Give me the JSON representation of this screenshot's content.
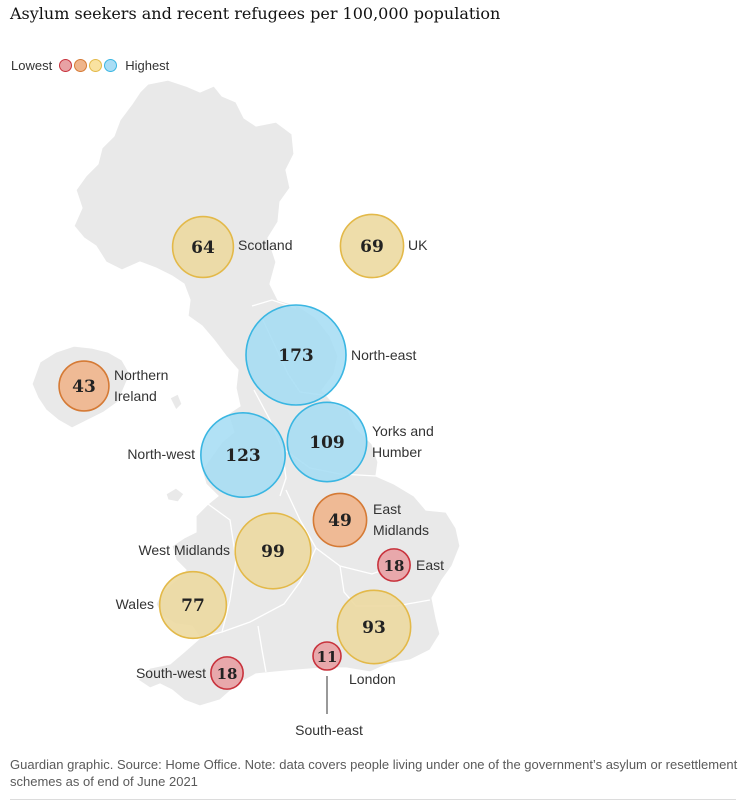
{
  "title": "Asylum seekers and recent refugees per 100,000 population",
  "legend": {
    "low_label": "Lowest",
    "high_label": "Highest",
    "colors": [
      "#e79aa0",
      "#f0b587",
      "#f9dd90",
      "#a9ddf5"
    ]
  },
  "colors": {
    "low": {
      "fill": "#e8a1a4",
      "stroke": "#c8323c"
    },
    "midlow": {
      "fill": "#efb58c",
      "stroke": "#d57a35"
    },
    "mid": {
      "fill": "#ecd9a1",
      "stroke": "#e3b949"
    },
    "high": {
      "fill": "#a3dcf3",
      "stroke": "#3ab6e2"
    },
    "land": "#e9e9e9",
    "land_border": "#ffffff"
  },
  "chart_data": {
    "type": "proportional-symbol map",
    "unit": "per 100,000 population",
    "regions": [
      {
        "name": "Scotland",
        "value": 64,
        "class": "mid"
      },
      {
        "name": "UK",
        "value": 69,
        "class": "mid"
      },
      {
        "name": "North-east",
        "value": 173,
        "class": "high"
      },
      {
        "name": "Northern Ireland",
        "value": 43,
        "class": "midlow"
      },
      {
        "name": "North-west",
        "value": 123,
        "class": "high"
      },
      {
        "name": "Yorks and Humber",
        "value": 109,
        "class": "high"
      },
      {
        "name": "East Midlands",
        "value": 49,
        "class": "midlow"
      },
      {
        "name": "West Midlands",
        "value": 99,
        "class": "mid"
      },
      {
        "name": "East",
        "value": 18,
        "class": "low"
      },
      {
        "name": "Wales",
        "value": 77,
        "class": "mid"
      },
      {
        "name": "London",
        "value": 93,
        "class": "mid"
      },
      {
        "name": "South-east",
        "value": 11,
        "class": "low"
      },
      {
        "name": "South-west",
        "value": 18,
        "class": "low"
      }
    ]
  },
  "footer": "Guardian graphic. Source: Home Office. Note: data covers people living under one of the government’s asylum or resettlement schemes as of end of June 2021"
}
